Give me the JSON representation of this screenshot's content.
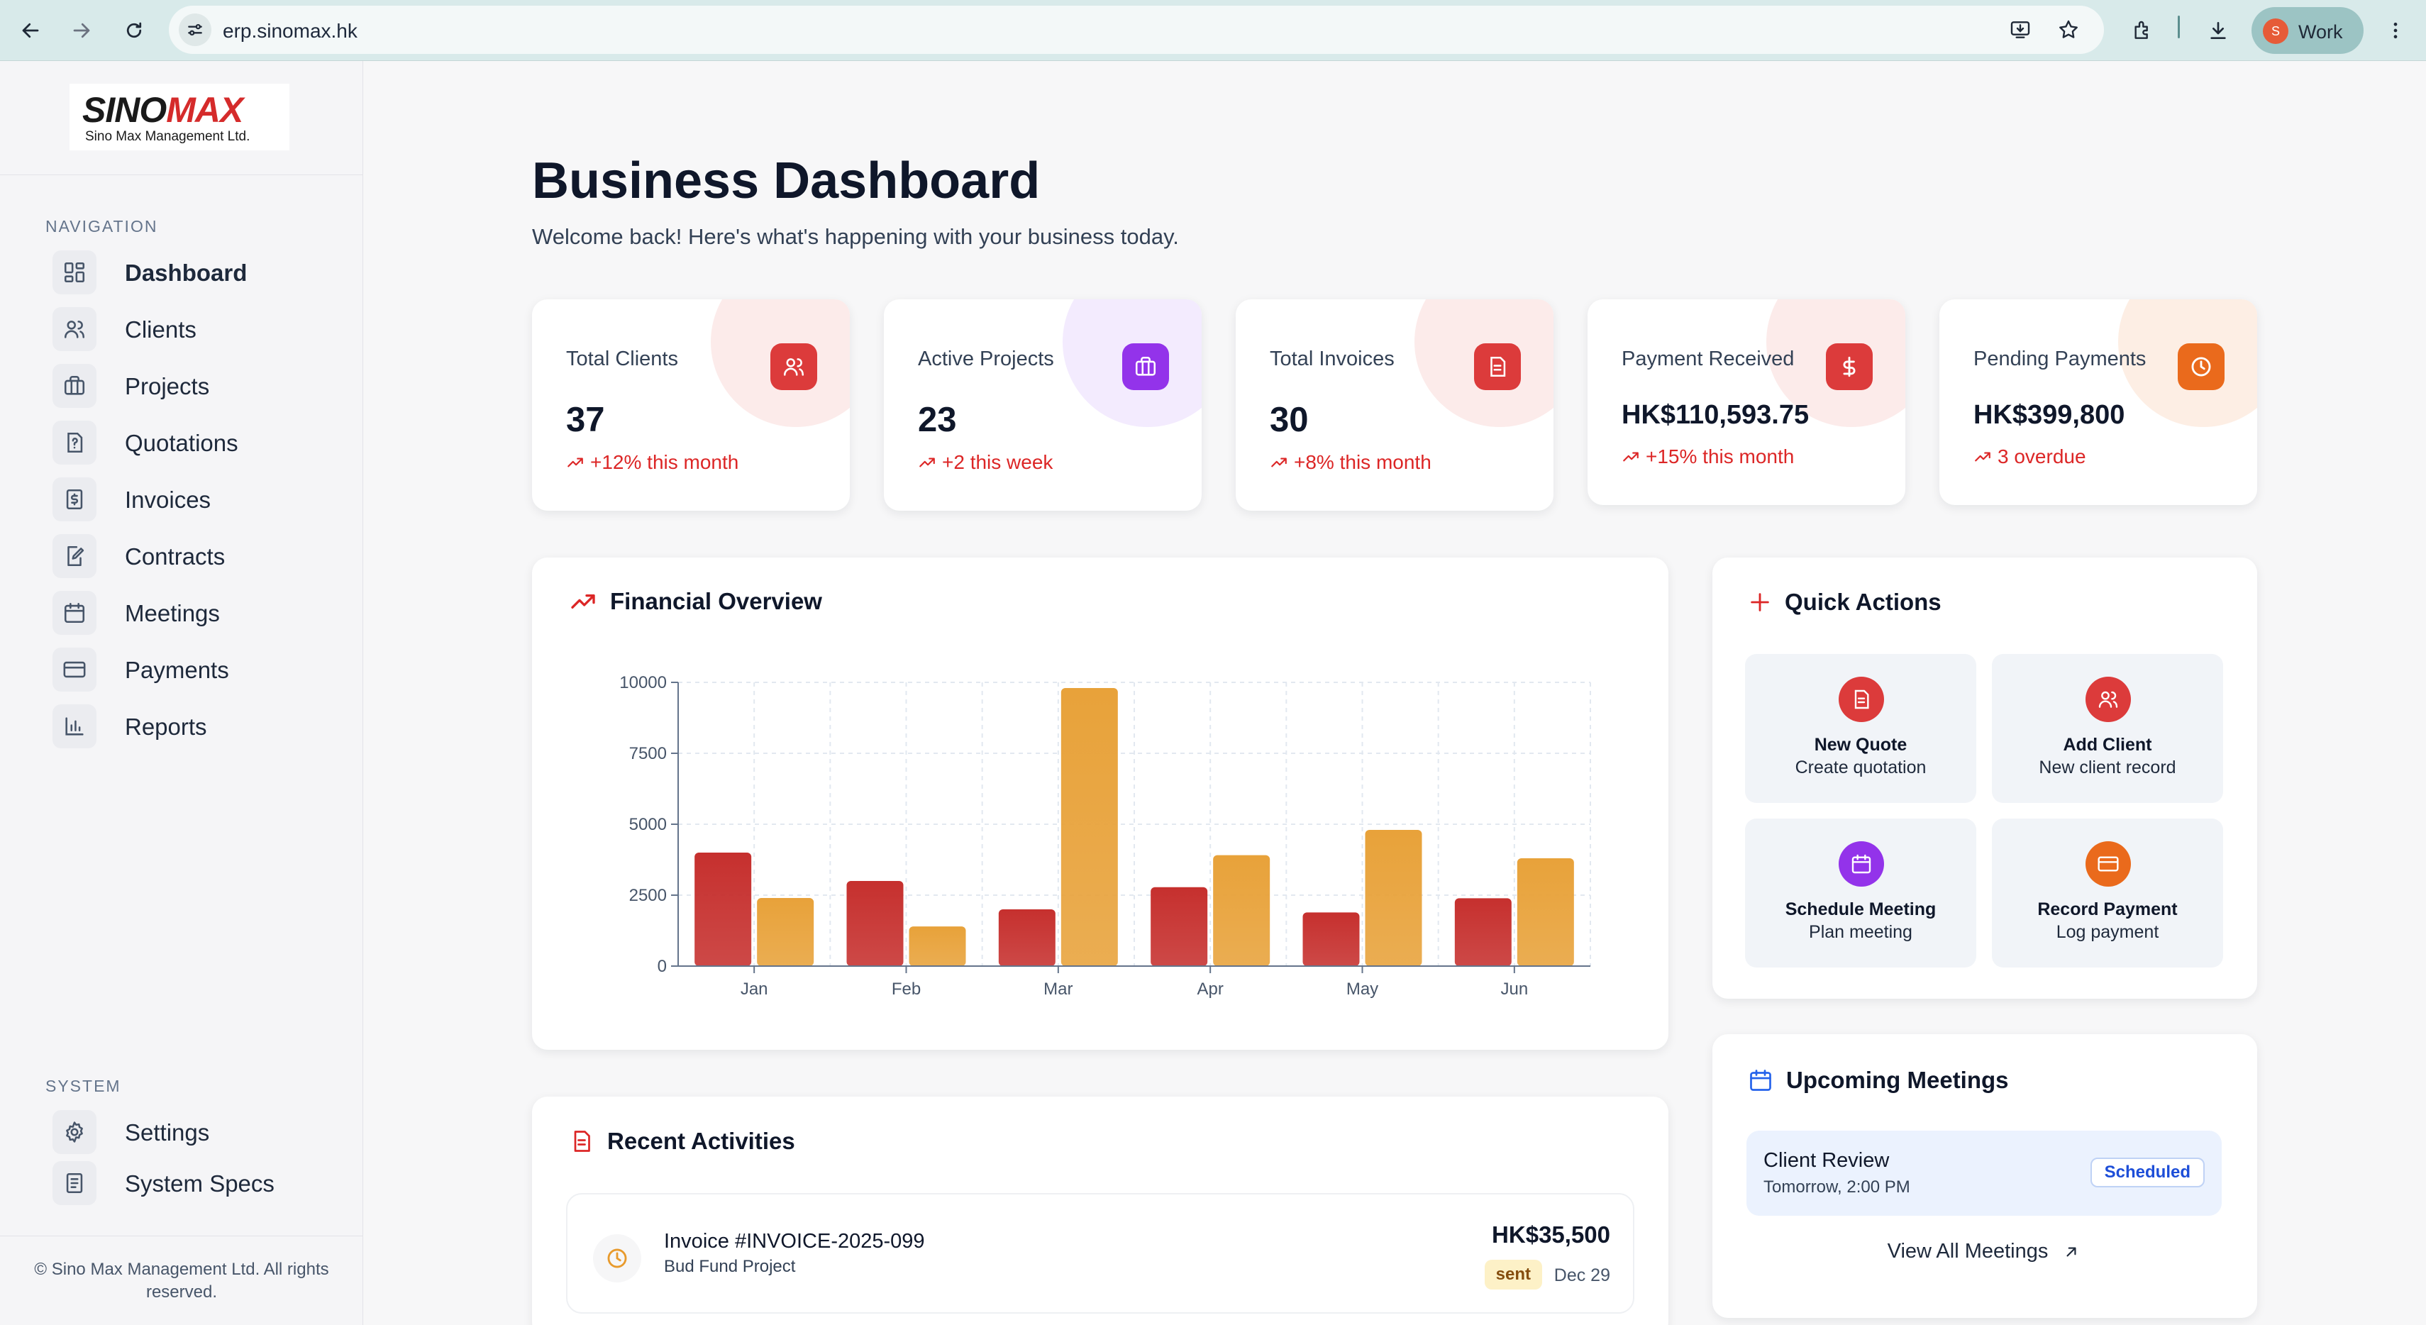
{
  "browser": {
    "url": "erp.sinomax.hk",
    "profile_initial": "S",
    "profile_name": "Work"
  },
  "logo": {
    "word_left": "SINO",
    "word_right": "MAX",
    "subtitle": "Sino Max Management Ltd."
  },
  "sidebar": {
    "nav_section_label": "NAVIGATION",
    "nav_items": [
      {
        "label": "Dashboard",
        "icon": "grid-icon"
      },
      {
        "label": "Clients",
        "icon": "users-icon"
      },
      {
        "label": "Projects",
        "icon": "briefcase-icon"
      },
      {
        "label": "Quotations",
        "icon": "file-question-icon"
      },
      {
        "label": "Invoices",
        "icon": "file-dollar-icon"
      },
      {
        "label": "Contracts",
        "icon": "file-edit-icon"
      },
      {
        "label": "Meetings",
        "icon": "calendar-icon"
      },
      {
        "label": "Payments",
        "icon": "credit-card-icon"
      },
      {
        "label": "Reports",
        "icon": "bar-chart-icon"
      }
    ],
    "system_section_label": "SYSTEM",
    "system_items": [
      {
        "label": "Settings",
        "icon": "gear-icon"
      },
      {
        "label": "System Specs",
        "icon": "document-icon"
      }
    ],
    "copyright": "© Sino Max Management Ltd. All rights reserved."
  },
  "header": {
    "title": "Business Dashboard",
    "subtitle": "Welcome back! Here's what's happening with your business today."
  },
  "stats": [
    {
      "label": "Total Clients",
      "value": "37",
      "trend": "+12% this month",
      "accent": "#dc3b3b",
      "icon": "users-icon"
    },
    {
      "label": "Active Projects",
      "value": "23",
      "trend": "+2 this week",
      "accent": "#9333ea",
      "icon": "briefcase-icon"
    },
    {
      "label": "Total Invoices",
      "value": "30",
      "trend": "+8% this month",
      "accent": "#dc3b3b",
      "icon": "file-icon"
    },
    {
      "label": "Payment Received",
      "value": "HK$110,593.75",
      "trend": "+15% this month",
      "accent": "#dc3b3b",
      "icon": "dollar-icon"
    },
    {
      "label": "Pending Payments",
      "value": "HK$399,800",
      "trend": "3 overdue",
      "accent": "#ea6a1c",
      "icon": "clock-icon"
    }
  ],
  "financial": {
    "title": "Financial Overview"
  },
  "chart_data": {
    "type": "bar",
    "categories": [
      "Jan",
      "Feb",
      "Mar",
      "Apr",
      "May",
      "Jun"
    ],
    "series": [
      {
        "values": [
          4000,
          3000,
          2000,
          2780,
          1890,
          2390
        ],
        "color": "#c6302e"
      },
      {
        "values": [
          2400,
          1398,
          9800,
          3908,
          4800,
          3800
        ],
        "color": "#e8a23a"
      }
    ],
    "yticks": [
      0,
      2500,
      5000,
      7500,
      10000
    ],
    "ylim": [
      0,
      10000
    ],
    "grid": true,
    "title": "",
    "xlabel": "",
    "ylabel": ""
  },
  "quick_actions": {
    "title": "Quick Actions",
    "items": [
      {
        "title": "New Quote",
        "subtitle": "Create quotation",
        "color": "#dc3b3b",
        "icon": "file-icon"
      },
      {
        "title": "Add Client",
        "subtitle": "New client record",
        "color": "#dc3b3b",
        "icon": "users-icon"
      },
      {
        "title": "Schedule Meeting",
        "subtitle": "Plan meeting",
        "color": "#9333ea",
        "icon": "calendar-icon"
      },
      {
        "title": "Record Payment",
        "subtitle": "Log payment",
        "color": "#ea6a1c",
        "icon": "credit-card-icon"
      }
    ]
  },
  "meetings": {
    "title": "Upcoming Meetings",
    "items": [
      {
        "name": "Client Review",
        "time": "Tomorrow, 2:00 PM",
        "status": "Scheduled"
      }
    ],
    "view_all": "View All Meetings"
  },
  "activities": {
    "title": "Recent Activities",
    "items": [
      {
        "title": "Invoice #INVOICE-2025-099",
        "subtitle": "Bud Fund Project",
        "amount": "HK$35,500",
        "status": "sent",
        "date": "Dec 29"
      }
    ]
  }
}
